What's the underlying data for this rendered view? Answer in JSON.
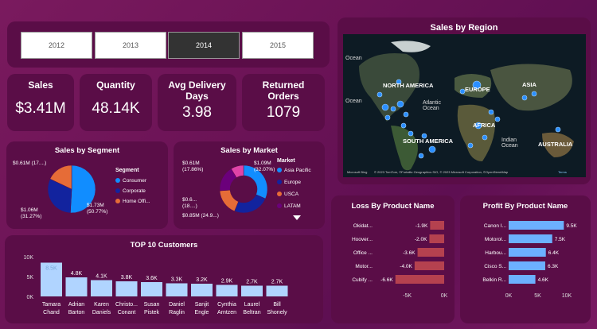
{
  "years": [
    "2012",
    "2013",
    "2014",
    "2015"
  ],
  "selected_year": "2014",
  "kpis": [
    {
      "label": "Sales",
      "value": "$3.41M"
    },
    {
      "label": "Quantity",
      "value": "48.14K"
    },
    {
      "label": "Avg Delivery Days",
      "value": "3.98"
    },
    {
      "label": "Returned Orders",
      "value": "1079"
    }
  ],
  "map": {
    "title": "Sales by Region",
    "labels": {
      "na": "NORTH AMERICA",
      "eu": "EUROPE",
      "asia": "ASIA",
      "sa": "SOUTH AMERICA",
      "af": "AFRICA",
      "au": "AUSTRALIA",
      "atl": "Atlantic Ocean",
      "ind": "Indian Ocean",
      "ocean_tl": "Ocean",
      "ocean_ml": "Ocean"
    },
    "attribution": "© 2023 TomTom, ©Fortalitz Geographics SIO, © 2023 Microsoft Corporation, ©OpenStreetMap",
    "terms": "Terms",
    "logo": "Microsoft Bing"
  },
  "segment": {
    "title": "Sales by Segment",
    "legend_title": "Segment",
    "labels": [
      "$0.61M (17....)",
      "$1.06M (31.27%)",
      "$1.73M (50.77%)"
    ],
    "colors": [
      "#118DFF",
      "#12239E",
      "#E66C37"
    ]
  },
  "market": {
    "title": "Sales by Market",
    "legend_title": "Market",
    "labels": [
      "$0.61M (17.86%)",
      "$1.09M (32.07%)",
      "$0.6... (18....)",
      "$0.85M (24.9...)"
    ],
    "colors": [
      "#118DFF",
      "#12239E",
      "#E66C37",
      "#6B007B",
      "#E044A7"
    ]
  },
  "chart_data": [
    {
      "type": "pie",
      "title": "Sales by Segment",
      "categories": [
        "Consumer",
        "Corporate",
        "Home Offi..."
      ],
      "values": [
        1.73,
        1.06,
        0.61
      ],
      "unit": "$M",
      "legend": "right"
    },
    {
      "type": "pie",
      "title": "Sales by Market",
      "categories": [
        "Asia Pacific",
        "Europe",
        "USCA",
        "LATAM"
      ],
      "values": [
        1.09,
        0.85,
        0.61,
        0.6
      ],
      "unit": "$M",
      "legend": "right"
    },
    {
      "type": "bar",
      "title": "TOP 10 Customers",
      "categories": [
        "Tamara Chand",
        "Adrian Barton",
        "Karen Daniels",
        "Christo... Conant",
        "Susan Pistek",
        "Daniel Raglin",
        "Sanjit Engle",
        "Cynthia Arntzen",
        "Laurel Beltran",
        "Bill Shonely"
      ],
      "values": [
        8.5,
        4.8,
        4.1,
        3.8,
        3.6,
        3.3,
        3.2,
        2.9,
        2.7,
        2.7
      ],
      "data_labels": [
        "8.5K",
        "4.8K",
        "4.1K",
        "3.8K",
        "3.6K",
        "3.3K",
        "3.2K",
        "2.9K",
        "2.7K",
        "2.7K"
      ],
      "yticks": [
        "0K",
        "5K",
        "10K"
      ],
      "ylim": [
        0,
        10
      ]
    },
    {
      "type": "bar",
      "orientation": "horizontal",
      "title": "Loss By Product Name",
      "categories": [
        "Okidat...",
        "Hoover...",
        "Office ...",
        "Motor...",
        "Cubify ..."
      ],
      "values": [
        -1.9,
        -2.0,
        -3.6,
        -4.0,
        -6.6
      ],
      "data_labels": [
        "-1.9K",
        "-2.0K",
        "-3.6K",
        "-4.0K",
        "-6.6K"
      ],
      "xticks": [
        "-5K",
        "0K"
      ],
      "xlim": [
        -7,
        0
      ]
    },
    {
      "type": "bar",
      "orientation": "horizontal",
      "title": "Profit By Product Name",
      "categories": [
        "Canon I...",
        "Motorol...",
        "Harbou...",
        "Cisco S...",
        "Belkin R..."
      ],
      "values": [
        9.5,
        7.5,
        6.4,
        6.3,
        4.6
      ],
      "data_labels": [
        "9.5K",
        "7.5K",
        "6.4K",
        "6.3K",
        "4.6K"
      ],
      "xticks": [
        "0K",
        "5K",
        "10K"
      ],
      "xlim": [
        0,
        10
      ]
    }
  ]
}
